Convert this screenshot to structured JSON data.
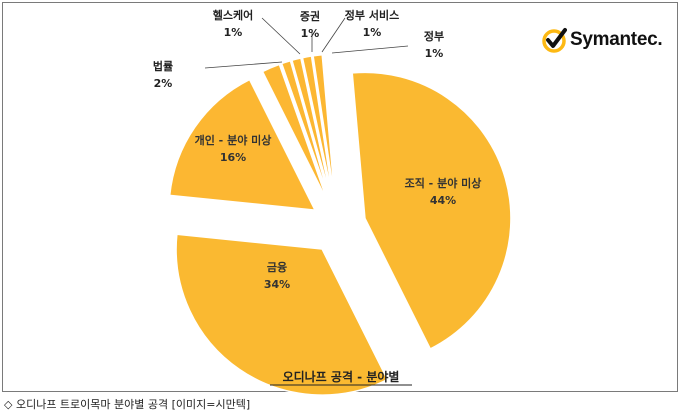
{
  "brand": {
    "name": "Symantec.",
    "accent": "#fdb913",
    "mark_color": "#111111"
  },
  "caption": "◇ 오디나프 트로이목마 분야별 공격 [이미지=시만텍]",
  "chart_data": {
    "type": "pie",
    "title": "오디나프 공격 - 분야별",
    "slices": [
      {
        "label": "조직 - 분야 미상",
        "value": 44,
        "value_label": "44%"
      },
      {
        "label": "금융",
        "value": 34,
        "value_label": "34%"
      },
      {
        "label": "개인 - 분야 미상",
        "value": 16,
        "value_label": "16%"
      },
      {
        "label": "법률",
        "value": 2,
        "value_label": "2%"
      },
      {
        "label": "헬스케어",
        "value": 1,
        "value_label": "1%"
      },
      {
        "label": "증권",
        "value": 1,
        "value_label": "1%"
      },
      {
        "label": "정부 서비스",
        "value": 1,
        "value_label": "1%"
      },
      {
        "label": "정부",
        "value": 1,
        "value_label": "1%"
      }
    ],
    "colors": {
      "slice": "#fcb732",
      "slice_large": "#fab931",
      "edge": "#ffffff"
    },
    "legend": "none"
  }
}
